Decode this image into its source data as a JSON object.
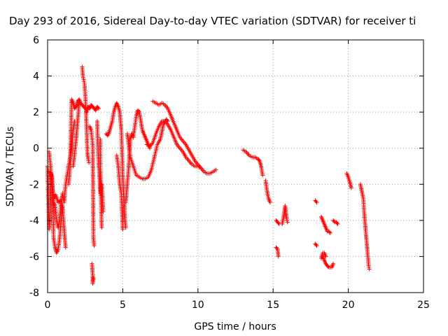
{
  "chart_data": {
    "type": "scatter",
    "title": "Day 293 of 2016, Sidereal Day-to-day VTEC variation (SDTVAR) for receiver ti",
    "xlabel": "GPS time / hours",
    "ylabel": "SDTVAR / TECUs",
    "xlim": [
      0,
      25
    ],
    "ylim": [
      -8,
      6
    ],
    "xticks": [
      0,
      5,
      10,
      15,
      20,
      25
    ],
    "yticks": [
      -8,
      -6,
      -4,
      -2,
      0,
      2,
      4,
      6
    ],
    "grid": true,
    "marker": "plus",
    "color": "#ff0000",
    "traces": [
      [
        [
          0.0,
          -1.0
        ],
        [
          0.1,
          -4.5
        ],
        [
          0.15,
          -4.0
        ],
        [
          0.2,
          -1.4
        ],
        [
          0.3,
          -1.6
        ],
        [
          0.35,
          -3.0
        ],
        [
          0.4,
          -5.0
        ],
        [
          0.5,
          -5.5
        ],
        [
          0.6,
          -5.8
        ],
        [
          0.7,
          -5.6
        ],
        [
          0.8,
          -5.0
        ],
        [
          0.9,
          -4.0
        ],
        [
          1.0,
          -3.2
        ]
      ],
      [
        [
          0.1,
          -0.2
        ],
        [
          0.2,
          -1.0
        ],
        [
          0.3,
          -2.2
        ],
        [
          0.4,
          -3.0
        ],
        [
          0.5,
          -3.2
        ],
        [
          0.6,
          -4.0
        ],
        [
          0.7,
          -4.4
        ],
        [
          0.8,
          -4.0
        ],
        [
          0.9,
          -3.0
        ],
        [
          1.0,
          -2.5
        ],
        [
          1.1,
          -3.0
        ],
        [
          1.2,
          -2.0
        ],
        [
          1.3,
          -1.5
        ],
        [
          1.4,
          -1.0
        ],
        [
          1.5,
          -0.5
        ],
        [
          1.6,
          0.0
        ],
        [
          1.7,
          1.0
        ],
        [
          1.8,
          1.5
        ]
      ],
      [
        [
          0.1,
          -1.3
        ],
        [
          0.25,
          -1.4
        ],
        [
          0.4,
          -2.8
        ],
        [
          0.55,
          -2.6
        ],
        [
          0.7,
          -3.0
        ],
        [
          0.85,
          -2.9
        ],
        [
          1.0,
          -3.4
        ],
        [
          1.1,
          -4.5
        ],
        [
          1.2,
          -5.5
        ]
      ],
      [
        [
          1.4,
          -2.0
        ],
        [
          1.5,
          -1.0
        ],
        [
          1.6,
          2.7
        ],
        [
          1.7,
          2.5
        ],
        [
          1.8,
          2.2
        ],
        [
          1.9,
          2.3
        ],
        [
          2.0,
          2.6
        ],
        [
          2.1,
          2.7
        ],
        [
          2.2,
          2.5
        ],
        [
          2.3,
          2.4
        ],
        [
          2.4,
          2.3
        ],
        [
          2.5,
          2.2
        ]
      ],
      [
        [
          1.7,
          -1.0
        ],
        [
          1.8,
          -0.3
        ],
        [
          1.9,
          0.5
        ],
        [
          2.0,
          1.5
        ],
        [
          2.1,
          2.5
        ]
      ],
      [
        [
          2.3,
          4.5
        ],
        [
          2.35,
          4.0
        ],
        [
          2.4,
          3.8
        ],
        [
          2.45,
          3.6
        ],
        [
          2.5,
          3.0
        ],
        [
          2.55,
          2.2
        ],
        [
          2.6,
          1.0
        ],
        [
          2.65,
          -0.3
        ],
        [
          2.7,
          -0.6
        ],
        [
          2.75,
          -0.8
        ]
      ],
      [
        [
          2.6,
          2.0
        ],
        [
          2.7,
          2.3
        ],
        [
          2.8,
          2.2
        ],
        [
          2.9,
          2.4
        ],
        [
          3.0,
          2.3
        ],
        [
          3.1,
          2.2
        ],
        [
          3.2,
          2.1
        ],
        [
          3.3,
          2.3
        ],
        [
          3.4,
          2.2
        ]
      ],
      [
        [
          2.8,
          1.2
        ],
        [
          2.9,
          1.0
        ],
        [
          3.0,
          0.2
        ],
        [
          3.05,
          -5.0
        ],
        [
          3.1,
          -5.4
        ]
      ],
      [
        [
          2.95,
          -6.4
        ],
        [
          3.0,
          -7.0
        ],
        [
          3.0,
          -7.5
        ],
        [
          3.05,
          -7.2
        ]
      ],
      [
        [
          3.3,
          1.5
        ],
        [
          3.35,
          0.0
        ],
        [
          3.4,
          -1.0
        ],
        [
          3.45,
          -1.5
        ],
        [
          3.5,
          -2.5
        ],
        [
          3.6,
          -2.0
        ],
        [
          3.7,
          -3.5
        ]
      ],
      [
        [
          3.5,
          0.5
        ],
        [
          3.5,
          -0.5
        ],
        [
          3.55,
          -2.8
        ],
        [
          3.6,
          -4.4
        ]
      ],
      [
        [
          3.9,
          0.8
        ],
        [
          4.0,
          0.7
        ],
        [
          4.1,
          0.9
        ],
        [
          4.2,
          1.2
        ],
        [
          4.3,
          1.5
        ],
        [
          4.4,
          2.0
        ],
        [
          4.5,
          2.3
        ],
        [
          4.6,
          2.5
        ],
        [
          4.7,
          2.3
        ],
        [
          4.8,
          2.0
        ],
        [
          4.9,
          1.0
        ],
        [
          5.0,
          -1.5
        ],
        [
          5.05,
          -2.5
        ],
        [
          5.1,
          -3.0
        ],
        [
          5.15,
          -4.0
        ],
        [
          5.2,
          -4.4
        ]
      ],
      [
        [
          4.6,
          -0.4
        ],
        [
          4.7,
          -1.0
        ],
        [
          4.8,
          -2.0
        ],
        [
          4.9,
          -2.5
        ],
        [
          5.0,
          -4.5
        ]
      ],
      [
        [
          5.2,
          -3.0
        ],
        [
          5.3,
          -2.0
        ],
        [
          5.4,
          -1.0
        ],
        [
          5.5,
          0.5
        ],
        [
          5.6,
          0.8
        ],
        [
          5.7,
          0.6
        ],
        [
          5.8,
          1.2
        ],
        [
          5.9,
          1.8
        ],
        [
          6.0,
          2.1
        ],
        [
          6.1,
          2.0
        ],
        [
          6.2,
          1.5
        ],
        [
          6.3,
          1.0
        ],
        [
          6.4,
          0.8
        ],
        [
          6.5,
          0.6
        ],
        [
          6.6,
          0.4
        ],
        [
          6.7,
          0.2
        ],
        [
          6.8,
          0.0
        ]
      ],
      [
        [
          5.3,
          0.8
        ],
        [
          5.5,
          -0.5
        ],
        [
          5.7,
          -1.0
        ],
        [
          5.9,
          -1.5
        ],
        [
          6.1,
          -1.6
        ],
        [
          6.3,
          -1.7
        ],
        [
          6.5,
          -1.7
        ],
        [
          6.7,
          -1.6
        ],
        [
          6.9,
          -1.2
        ],
        [
          7.1,
          -0.5
        ],
        [
          7.3,
          0.2
        ],
        [
          7.5,
          0.5
        ],
        [
          7.7,
          1.3
        ],
        [
          7.9,
          1.6
        ],
        [
          8.0,
          1.5
        ]
      ],
      [
        [
          7.0,
          2.6
        ],
        [
          7.2,
          2.5
        ],
        [
          7.4,
          2.4
        ],
        [
          7.6,
          2.5
        ],
        [
          7.8,
          2.4
        ],
        [
          8.0,
          2.2
        ],
        [
          8.2,
          1.8
        ],
        [
          8.4,
          1.4
        ],
        [
          8.6,
          1.0
        ],
        [
          8.8,
          0.6
        ],
        [
          9.0,
          0.4
        ],
        [
          9.2,
          0.2
        ],
        [
          9.4,
          -0.1
        ],
        [
          9.6,
          -0.4
        ],
        [
          9.8,
          -0.7
        ],
        [
          10.0,
          -0.9
        ],
        [
          10.2,
          -1.1
        ],
        [
          10.4,
          -1.3
        ],
        [
          10.6,
          -1.4
        ],
        [
          10.8,
          -1.4
        ],
        [
          11.0,
          -1.3
        ],
        [
          11.2,
          -1.2
        ]
      ],
      [
        [
          6.6,
          0.2
        ],
        [
          6.8,
          0.1
        ],
        [
          7.0,
          0.3
        ],
        [
          7.2,
          0.8
        ],
        [
          7.4,
          1.2
        ],
        [
          7.6,
          1.5
        ],
        [
          7.8,
          1.5
        ],
        [
          8.0,
          1.3
        ],
        [
          8.2,
          1.0
        ],
        [
          8.4,
          0.6
        ],
        [
          8.6,
          0.2
        ],
        [
          8.8,
          0.0
        ],
        [
          9.0,
          -0.2
        ],
        [
          9.2,
          -0.5
        ],
        [
          9.4,
          -0.7
        ],
        [
          9.6,
          -0.9
        ],
        [
          9.8,
          -1.0
        ],
        [
          10.0,
          -1.0
        ],
        [
          10.2,
          -1.1
        ]
      ],
      [
        [
          13.0,
          -0.1
        ],
        [
          13.2,
          -0.2
        ],
        [
          13.4,
          -0.4
        ],
        [
          13.6,
          -0.5
        ],
        [
          13.8,
          -0.5
        ],
        [
          14.0,
          -0.6
        ],
        [
          14.1,
          -0.7
        ],
        [
          14.2,
          -1.0
        ],
        [
          14.3,
          -1.5
        ]
      ],
      [
        [
          14.5,
          -1.8
        ],
        [
          14.6,
          -2.4
        ],
        [
          14.7,
          -2.8
        ],
        [
          14.8,
          -3.0
        ]
      ],
      [
        [
          15.2,
          -4.0
        ],
        [
          15.3,
          -4.1
        ],
        [
          15.4,
          -4.2
        ]
      ],
      [
        [
          15.2,
          -5.5
        ],
        [
          15.3,
          -5.6
        ],
        [
          15.35,
          -6.0
        ]
      ],
      [
        [
          15.6,
          -4.2
        ],
        [
          15.7,
          -3.8
        ],
        [
          15.75,
          -3.5
        ],
        [
          15.8,
          -3.2
        ],
        [
          15.85,
          -3.6
        ],
        [
          15.9,
          -3.9
        ],
        [
          15.95,
          -4.1
        ]
      ],
      [
        [
          17.8,
          -2.9
        ],
        [
          17.9,
          -3.0
        ]
      ],
      [
        [
          17.8,
          -5.3
        ],
        [
          17.9,
          -5.4
        ]
      ],
      [
        [
          18.2,
          -3.8
        ],
        [
          18.3,
          -4.0
        ],
        [
          18.4,
          -4.2
        ],
        [
          18.5,
          -4.4
        ],
        [
          18.6,
          -4.6
        ],
        [
          18.7,
          -4.6
        ],
        [
          18.8,
          -4.7
        ]
      ],
      [
        [
          18.3,
          -6.0
        ],
        [
          18.4,
          -6.2
        ],
        [
          18.5,
          -6.4
        ],
        [
          18.6,
          -6.5
        ],
        [
          18.7,
          -6.6
        ],
        [
          18.8,
          -6.6
        ],
        [
          18.9,
          -6.6
        ],
        [
          19.0,
          -6.4
        ]
      ],
      [
        [
          18.2,
          -6.1
        ],
        [
          18.3,
          -5.8
        ],
        [
          18.4,
          -5.8
        ],
        [
          18.5,
          -6.0
        ]
      ],
      [
        [
          19.0,
          -4.0
        ],
        [
          19.1,
          -4.1
        ],
        [
          19.2,
          -4.1
        ],
        [
          19.3,
          -4.2
        ]
      ],
      [
        [
          19.9,
          -1.4
        ],
        [
          20.0,
          -1.6
        ],
        [
          20.1,
          -1.9
        ],
        [
          20.2,
          -2.2
        ]
      ],
      [
        [
          20.8,
          -2.0
        ],
        [
          20.9,
          -2.4
        ],
        [
          21.0,
          -2.8
        ],
        [
          21.05,
          -3.5
        ],
        [
          21.1,
          -4.0
        ],
        [
          21.15,
          -4.5
        ],
        [
          21.2,
          -5.0
        ],
        [
          21.25,
          -5.5
        ],
        [
          21.3,
          -6.0
        ],
        [
          21.35,
          -6.5
        ],
        [
          21.4,
          -6.7
        ]
      ]
    ]
  }
}
